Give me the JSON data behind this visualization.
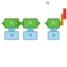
{
  "bg_color": "#ffffff",
  "cell_color": "#6abf4b",
  "cell_edge_color": "#3a8a1a",
  "heat_color": "#a8d8f0",
  "heat_edge_color": "#5599bb",
  "arrow_color": "#4499bb",
  "red_color": "#e03030",
  "orange_color": "#cc7700",
  "label_color": "#444444",
  "ts_color": "#ffffff",
  "tb_color": "#336699"
}
